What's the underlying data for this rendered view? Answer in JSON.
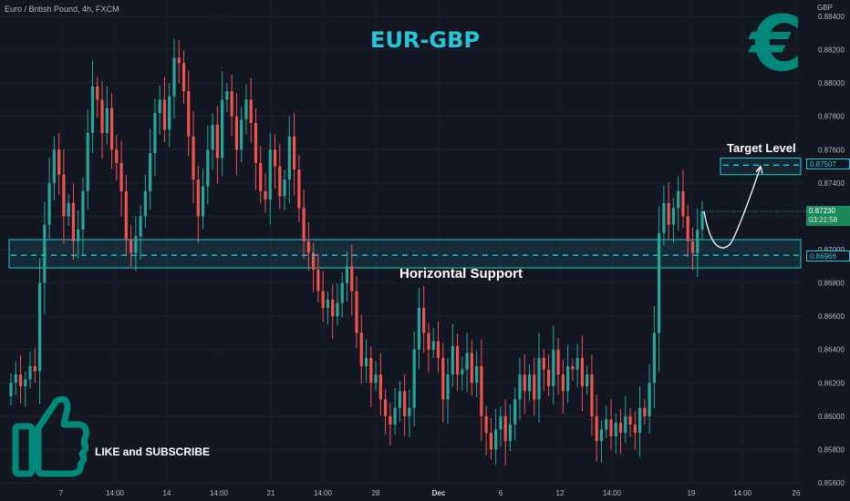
{
  "header": {
    "symbol": "Euro / British Pound, 4h, FXCM",
    "currency": "GBP"
  },
  "annotations": {
    "title": "EUR-GBP",
    "support_label": "Horizontal Support",
    "target_label": "Target Level",
    "like_label": "LIKE and SUBSCRIBE"
  },
  "price_tags": {
    "target": "0.87507",
    "support": "0.86966",
    "last": "0.87230",
    "timer": "03:21:58"
  },
  "icons": [
    "euro-icon",
    "thumbs-up-icon"
  ],
  "colors": {
    "background": "#131722",
    "up": "#26a69a",
    "down": "#ef5350",
    "accent": "#26c6da",
    "euro": "#00897b"
  },
  "chart_data": {
    "type": "candlestick",
    "ylim": [
      0.856,
      0.884
    ],
    "y_ticks": [
      "0.85600",
      "0.85800",
      "0.86000",
      "0.86200",
      "0.86400",
      "0.86600",
      "0.86800",
      "0.87000",
      "0.87200",
      "0.87400",
      "0.87600",
      "0.87800",
      "0.88000",
      "0.88200",
      "0.88400"
    ],
    "x_ticks": [
      "7",
      "14:00",
      "14",
      "14:00",
      "21",
      "14:00",
      "28",
      "Dec",
      "6",
      "12",
      "14:00",
      "19",
      "14:00",
      "26"
    ],
    "support_level": 0.86966,
    "support_zone": [
      0.8689,
      0.8706
    ],
    "target_level": 0.87507,
    "target_zone": [
      0.8745,
      0.8755
    ],
    "last_price": 0.8723,
    "path_points": [
      0.8723,
      0.8703,
      0.875
    ],
    "closes": [
      0.862,
      0.8625,
      0.8618,
      0.8622,
      0.863,
      0.8627,
      0.868,
      0.8715,
      0.874,
      0.876,
      0.8745,
      0.872,
      0.8728,
      0.8705,
      0.8712,
      0.8735,
      0.877,
      0.8798,
      0.879,
      0.877,
      0.8785,
      0.876,
      0.8752,
      0.8735,
      0.8706,
      0.8698,
      0.8708,
      0.872,
      0.8735,
      0.8758,
      0.8782,
      0.879,
      0.8772,
      0.8792,
      0.8815,
      0.8812,
      0.8795,
      0.8768,
      0.8742,
      0.872,
      0.8738,
      0.876,
      0.8775,
      0.8755,
      0.879,
      0.8795,
      0.878,
      0.876,
      0.8778,
      0.879,
      0.8776,
      0.8752,
      0.8735,
      0.873,
      0.876,
      0.875,
      0.8732,
      0.8742,
      0.8768,
      0.8748,
      0.8725,
      0.8705,
      0.8698,
      0.8688,
      0.8675,
      0.8665,
      0.867,
      0.866,
      0.8668,
      0.868,
      0.869,
      0.8675,
      0.865,
      0.863,
      0.8635,
      0.862,
      0.8625,
      0.861,
      0.86,
      0.8595,
      0.8605,
      0.8615,
      0.86,
      0.8605,
      0.864,
      0.8665,
      0.865,
      0.864,
      0.8645,
      0.8635,
      0.861,
      0.8625,
      0.8642,
      0.8625,
      0.8628,
      0.8638,
      0.862,
      0.863,
      0.86,
      0.859,
      0.858,
      0.8592,
      0.86,
      0.8585,
      0.8595,
      0.861,
      0.8625,
      0.8615,
      0.8625,
      0.861,
      0.8635,
      0.8628,
      0.8618,
      0.864,
      0.8625,
      0.8615,
      0.863,
      0.8628,
      0.8635,
      0.8618,
      0.8625,
      0.86,
      0.8585,
      0.8592,
      0.8598,
      0.8588,
      0.8596,
      0.859,
      0.86,
      0.8595,
      0.859,
      0.8605,
      0.86,
      0.862,
      0.865,
      0.871,
      0.8728,
      0.8715,
      0.8725,
      0.8735,
      0.872,
      0.8705,
      0.8698,
      0.8712,
      0.8723
    ]
  }
}
